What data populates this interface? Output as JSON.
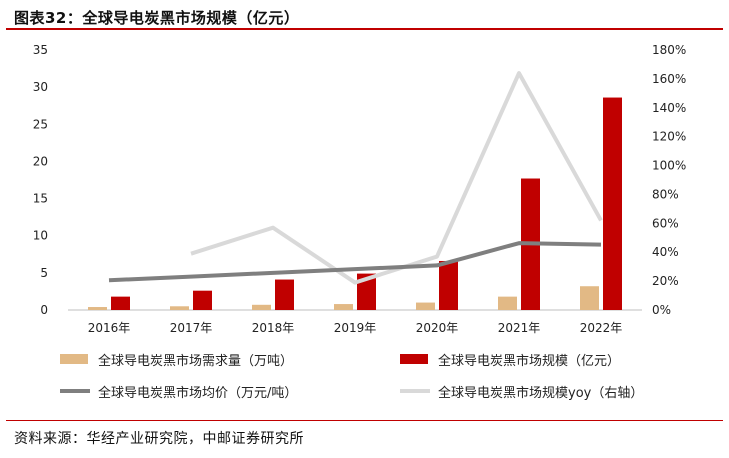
{
  "title": "图表32：全球导电炭黑市场规模（亿元）",
  "source": "资料来源：华经产业研究院，中邮证券研究所",
  "colors": {
    "demand": "#e2b985",
    "market_size": "#c00000",
    "avg_price": "#7f7f7f",
    "yoy": "#d9d9d9",
    "accent": "#c00000"
  },
  "chart_data": {
    "type": "bar",
    "categories": [
      "2016年",
      "2017年",
      "2018年",
      "2019年",
      "2020年",
      "2021年",
      "2022年"
    ],
    "left_axis": {
      "ylim": [
        0,
        35
      ],
      "ticks": [
        "0",
        "5",
        "10",
        "15",
        "20",
        "25",
        "30",
        "35"
      ]
    },
    "right_axis": {
      "ylim": [
        0,
        180
      ],
      "ticks": [
        "0%",
        "20%",
        "40%",
        "60%",
        "80%",
        "100%",
        "120%",
        "140%",
        "160%",
        "180%"
      ]
    },
    "series": [
      {
        "name": "全球导电炭黑市场需求量（万吨）",
        "type": "bar",
        "axis": "left",
        "values": [
          0.4,
          0.5,
          0.7,
          0.8,
          1.0,
          1.8,
          3.2
        ]
      },
      {
        "name": "全球导电炭黑市场规模（亿元）",
        "type": "bar",
        "axis": "left",
        "values": [
          1.8,
          2.6,
          4.1,
          4.9,
          6.6,
          17.7,
          28.6
        ]
      },
      {
        "name": "全球导电炭黑市场均价（万元/吨）",
        "type": "line",
        "axis": "left",
        "values": [
          4.0,
          4.5,
          5.0,
          5.5,
          6.0,
          9.0,
          8.8
        ]
      },
      {
        "name": "全球导电炭黑市场规模yoy（右轴）",
        "type": "line",
        "axis": "right",
        "values": [
          null,
          39,
          57,
          19,
          37,
          164,
          62
        ]
      }
    ]
  }
}
